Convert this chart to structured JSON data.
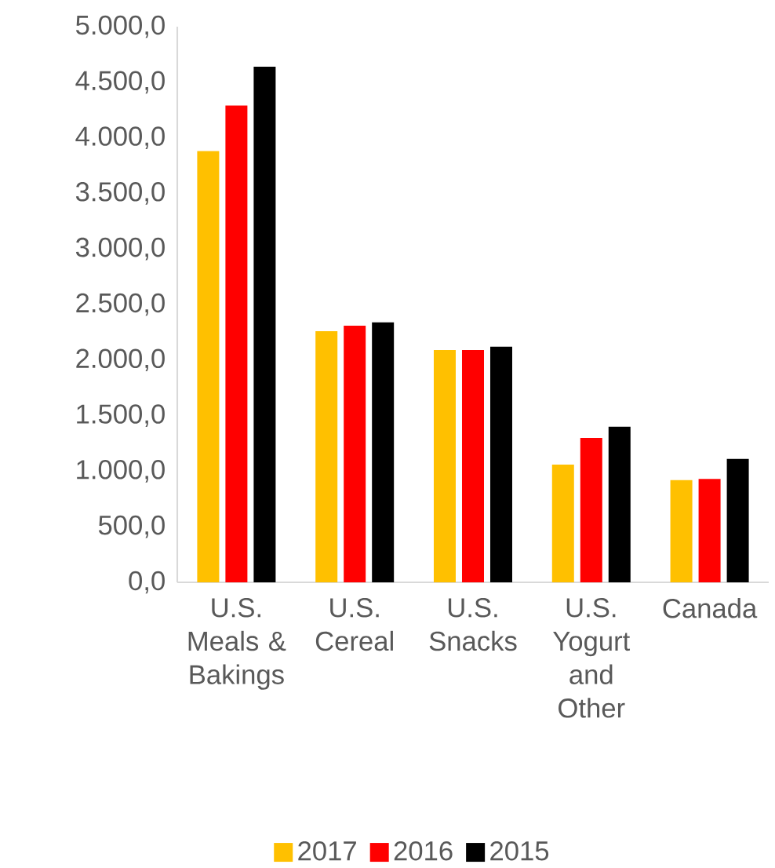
{
  "chart_data": {
    "type": "bar",
    "categories": [
      "U.S. Meals & Bakings",
      "U.S. Cereal",
      "U.S. Snacks",
      "U.S. Yogurt and Other",
      "Canada"
    ],
    "series": [
      {
        "name": "2017",
        "color": "#ffc000",
        "values": [
          3880,
          2260,
          2090,
          1060,
          920
        ]
      },
      {
        "name": "2016",
        "color": "#ff0000",
        "values": [
          4290,
          2310,
          2090,
          1300,
          930
        ]
      },
      {
        "name": "2015",
        "color": "#000000",
        "values": [
          4640,
          2340,
          2120,
          1400,
          1110
        ]
      }
    ],
    "ylim": [
      0,
      5000
    ],
    "yticks": [
      {
        "value": 0,
        "label": "0,0"
      },
      {
        "value": 500,
        "label": "500,0"
      },
      {
        "value": 1000,
        "label": "1.000,0"
      },
      {
        "value": 1500,
        "label": "1.500,0"
      },
      {
        "value": 2000,
        "label": "2.000,0"
      },
      {
        "value": 2500,
        "label": "2.500,0"
      },
      {
        "value": 3000,
        "label": "3.000,0"
      },
      {
        "value": 3500,
        "label": "3.500,0"
      },
      {
        "value": 4000,
        "label": "4.000,0"
      },
      {
        "value": 4500,
        "label": "4.500,0"
      },
      {
        "value": 5000,
        "label": "5.000,0"
      }
    ],
    "grid": false,
    "legend": "bottom"
  }
}
